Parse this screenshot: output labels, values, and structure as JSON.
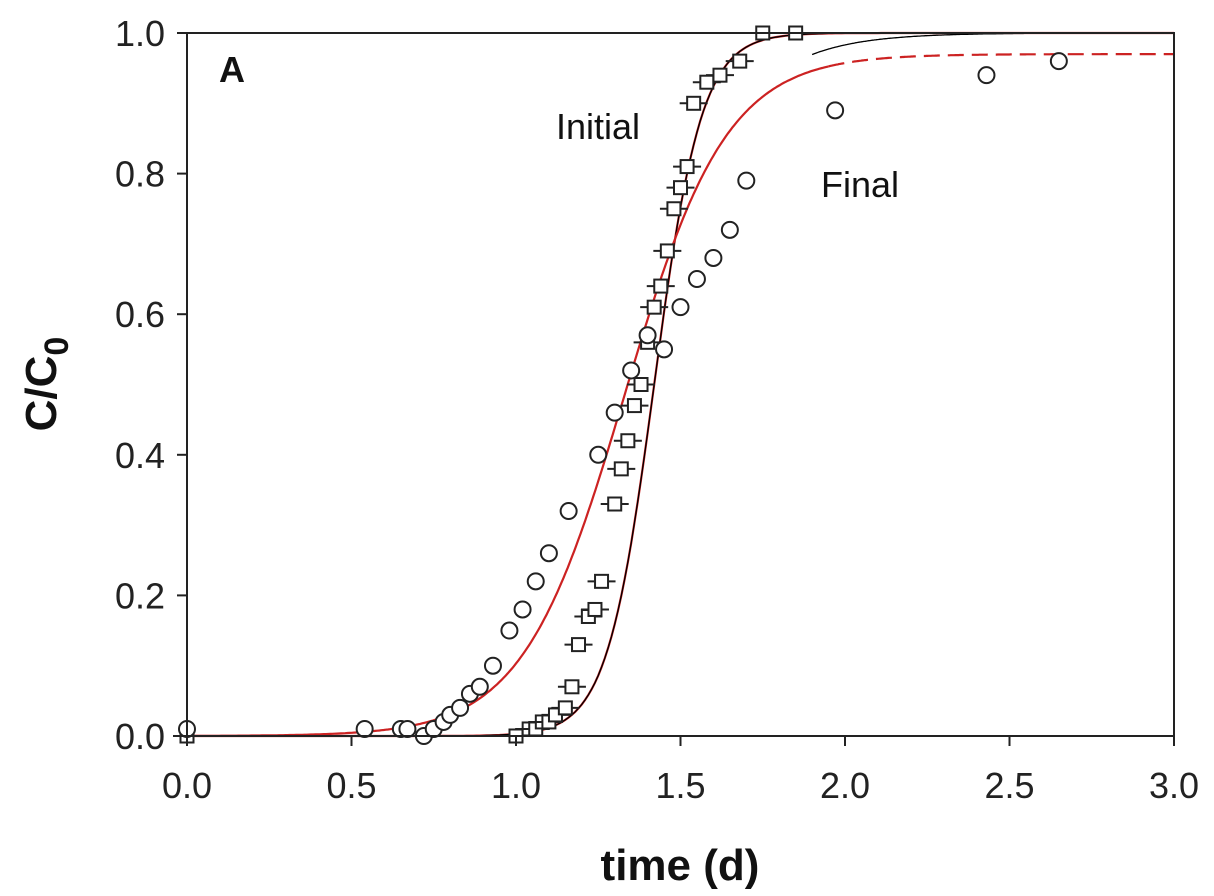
{
  "chart_data": {
    "type": "scatter",
    "panel_label": "A",
    "xlabel": "time (d)",
    "ylabel": "C/C",
    "ylabel_subscript": "0",
    "xlim": [
      0,
      3
    ],
    "ylim": [
      0,
      1
    ],
    "xticks": [
      "0.0",
      "0.5",
      "1.0",
      "1.5",
      "2.0",
      "2.5",
      "3.0"
    ],
    "yticks": [
      "0.0",
      "0.2",
      "0.4",
      "0.6",
      "0.8",
      "1.0"
    ],
    "grid": false,
    "legend": "none",
    "annotations": [
      {
        "text": "Initial",
        "x": 1.12,
        "y": 0.87
      },
      {
        "text": "Final",
        "x": 1.87,
        "y": 0.78
      }
    ],
    "series": [
      {
        "marker": "square-with-error-bars",
        "x": [
          0.0,
          1.0,
          1.04,
          1.06,
          1.08,
          1.1,
          1.12,
          1.15,
          1.17,
          1.19,
          1.22,
          1.24,
          1.26,
          1.3,
          1.32,
          1.34,
          1.36,
          1.38,
          1.4,
          1.42,
          1.44,
          1.46,
          1.48,
          1.5,
          1.52,
          1.54,
          1.58,
          1.62,
          1.68,
          1.75,
          1.85
        ],
        "y": [
          0.0,
          0.0,
          0.01,
          0.01,
          0.02,
          0.02,
          0.03,
          0.04,
          0.07,
          0.13,
          0.17,
          0.18,
          0.22,
          0.33,
          0.38,
          0.42,
          0.47,
          0.5,
          0.56,
          0.61,
          0.64,
          0.69,
          0.75,
          0.78,
          0.81,
          0.9,
          0.93,
          0.94,
          0.96,
          1.0,
          1.0
        ]
      },
      {
        "marker": "circle",
        "x": [
          0.0,
          0.54,
          0.65,
          0.67,
          0.72,
          0.75,
          0.78,
          0.8,
          0.83,
          0.86,
          0.89,
          0.93,
          0.98,
          1.02,
          1.06,
          1.1,
          1.16,
          1.25,
          1.3,
          1.35,
          1.4,
          1.45,
          1.5,
          1.55,
          1.6,
          1.65,
          1.7,
          1.97,
          2.43,
          2.65
        ],
        "y": [
          0.01,
          0.01,
          0.01,
          0.01,
          0.0,
          0.01,
          0.02,
          0.03,
          0.04,
          0.06,
          0.07,
          0.1,
          0.15,
          0.18,
          0.22,
          0.26,
          0.32,
          0.4,
          0.46,
          0.52,
          0.57,
          0.55,
          0.61,
          0.65,
          0.68,
          0.72,
          0.79,
          0.89,
          0.94,
          0.96
        ]
      }
    ],
    "fit_curves": [
      {
        "kind": "logistic",
        "color": "#cc2222",
        "dash": "solid",
        "center": 1.42,
        "scale": 0.072,
        "plateau": 1.0
      },
      {
        "kind": "logistic",
        "color": "#000000",
        "dash": "solid",
        "center": 1.42,
        "scale": 0.072,
        "plateau": 1.0
      },
      {
        "kind": "logistic",
        "color": "#cc2222",
        "dash": "solid",
        "center": 1.33,
        "scale": 0.155,
        "plateau": 0.97,
        "range": [
          0.0,
          1.95
        ]
      },
      {
        "kind": "logistic",
        "color": "#cc2222",
        "dash": "dashed",
        "center": 1.33,
        "scale": 0.155,
        "plateau": 0.97,
        "range": [
          1.95,
          3.0
        ]
      },
      {
        "kind": "logistic",
        "color": "#000000",
        "dash": "solid",
        "center": 1.33,
        "scale": 0.165,
        "plateau": 1.0,
        "range": [
          1.9,
          3.0
        ]
      }
    ]
  }
}
